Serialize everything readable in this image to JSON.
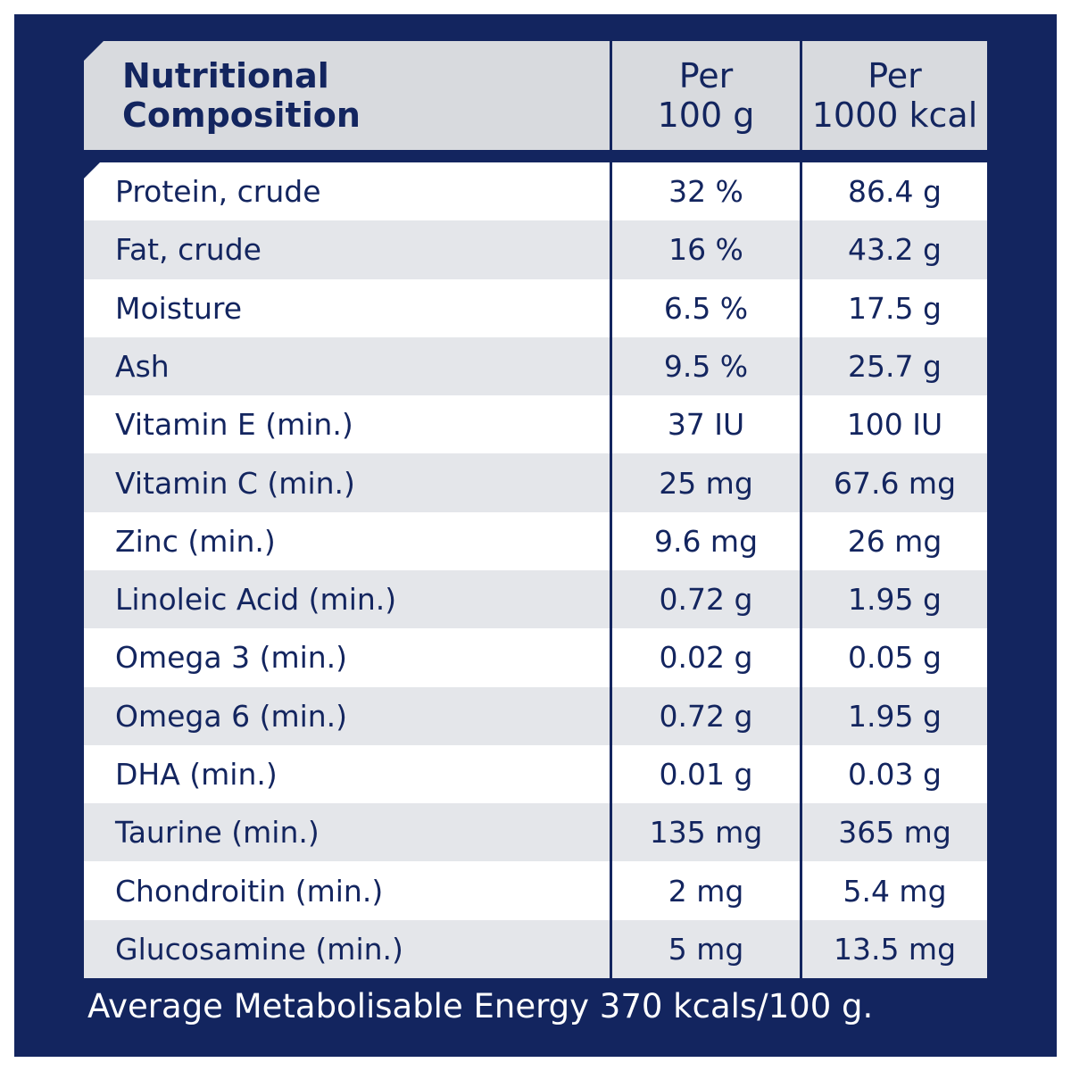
{
  "table": {
    "header": {
      "name_line1": "Nutritional",
      "name_line2": "Composition",
      "col1_line1": "Per",
      "col1_line2": "100 g",
      "col2_line1": "Per",
      "col2_line2": "1000 kcal"
    },
    "rows": [
      {
        "name": "Protein, crude",
        "per_100g": "32 %",
        "per_1000kcal": "86.4 g"
      },
      {
        "name": "Fat, crude",
        "per_100g": "16 %",
        "per_1000kcal": "43.2 g"
      },
      {
        "name": "Moisture",
        "per_100g": "6.5 %",
        "per_1000kcal": "17.5 g"
      },
      {
        "name": "Ash",
        "per_100g": "9.5 %",
        "per_1000kcal": "25.7 g"
      },
      {
        "name": "Vitamin E (min.)",
        "per_100g": "37 IU",
        "per_1000kcal": "100 IU"
      },
      {
        "name": "Vitamin C (min.)",
        "per_100g": "25 mg",
        "per_1000kcal": "67.6 mg"
      },
      {
        "name": "Zinc (min.)",
        "per_100g": "9.6 mg",
        "per_1000kcal": "26 mg"
      },
      {
        "name": "Linoleic Acid (min.)",
        "per_100g": "0.72 g",
        "per_1000kcal": "1.95 g"
      },
      {
        "name": "Omega 3 (min.)",
        "per_100g": "0.02 g",
        "per_1000kcal": "0.05 g"
      },
      {
        "name": "Omega 6 (min.)",
        "per_100g": "0.72 g",
        "per_1000kcal": "1.95 g"
      },
      {
        "name": "DHA (min.)",
        "per_100g": "0.01 g",
        "per_1000kcal": "0.03 g"
      },
      {
        "name": "Taurine (min.)",
        "per_100g": "135 mg",
        "per_1000kcal": "365 mg"
      },
      {
        "name": "Chondroitin (min.)",
        "per_100g": "2 mg",
        "per_1000kcal": "5.4 mg"
      },
      {
        "name": "Glucosamine (min.)",
        "per_100g": "5 mg",
        "per_1000kcal": "13.5 mg"
      }
    ]
  },
  "footer": {
    "text": "Average Metabolisable Energy 370 kcals/100 g."
  },
  "colors": {
    "frame": "#13255f",
    "header_bg": "#d8dade",
    "row_alt_bg": "#e4e6ea",
    "row_bg": "#ffffff",
    "text": "#13255f"
  }
}
